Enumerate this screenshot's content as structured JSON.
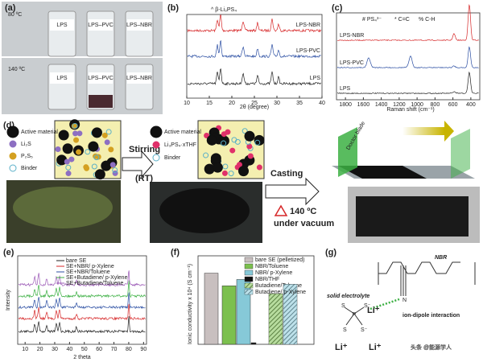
{
  "panels": {
    "a": {
      "label": "(a)",
      "temps": [
        "80 ºC",
        "140 ºC"
      ],
      "vials": [
        "LPS",
        "LPS–PVC",
        "LPS–NBR"
      ]
    },
    "b": {
      "label": "(b)",
      "legend": "^ β-Li₃PS₄",
      "series": [
        "LPS-NBR",
        "LPS-PVC",
        "LPS"
      ],
      "xlabel": "2θ (degree)",
      "xlim": [
        10,
        40
      ],
      "xticks": [
        10,
        15,
        20,
        25,
        30,
        35,
        40
      ]
    },
    "c": {
      "label": "(c)",
      "legend": [
        "# PS₄³⁻",
        "* C=C",
        "% C-H"
      ],
      "series": [
        "LPS-NBR",
        "LPS-PVC",
        "LPS"
      ],
      "xlabel": "Raman shift (cm⁻¹)",
      "xlim": [
        1900,
        300
      ],
      "xticks": [
        1800,
        1600,
        1400,
        1200,
        1000,
        800,
        600,
        400
      ]
    },
    "d": {
      "label": "(d)",
      "legend1": [
        "Active material",
        "Li₂S",
        "P₂S₅",
        "Binder"
      ],
      "step1": [
        "Stirring",
        "(RT)"
      ],
      "legend2": [
        "Active material",
        "Li₃PS₄·xTHF",
        "Binder"
      ],
      "step2": [
        "Casting",
        "140 ºC",
        "under vacuum"
      ],
      "blade": "Doctor blade"
    },
    "e": {
      "label": "(e)",
      "legend": [
        "bare SE",
        "SE+NBR/ p-Xylene",
        "SE+NBR/Toluene",
        "SE+Butadiene/ p-Xylene",
        "SE+Butadiene/Toluene"
      ],
      "ylabel": "Intensity",
      "xlabel": "2 theta",
      "xlim": [
        5,
        92
      ],
      "xticks": [
        10,
        20,
        30,
        40,
        50,
        60,
        70,
        80,
        90
      ]
    },
    "g": {
      "label": "(g)",
      "polymer": "NBR",
      "electrolyte": "solid electrolyte",
      "interaction": "ion-dipole interaction",
      "li": "Li⁺",
      "s": "S",
      "sm": "S⁻",
      "p": "P",
      "n": "N"
    },
    "watermark": "头条 @能源学人"
  },
  "chart_data": {
    "type": "bar",
    "label": "(f)",
    "ylabel": "Ionic conductivity x 10⁴ (S cm⁻¹)",
    "categories": [
      "bare SE (pelletized)",
      "NBR/Toluene",
      "NBR/ p-Xylene",
      "NBR/THF",
      "Butadiene/Toluene",
      "Butadiene/ p-Xylene"
    ],
    "values": [
      4.5,
      3.7,
      4.1,
      0.1,
      3.2,
      3.8
    ],
    "colors": [
      "#c8bfbf",
      "#7cc04e",
      "#86c9d8",
      "#111111",
      "#7cc04e",
      "#86c9d8"
    ],
    "hatch": [
      false,
      false,
      false,
      false,
      true,
      true
    ],
    "ylim": [
      0,
      5.6
    ]
  }
}
